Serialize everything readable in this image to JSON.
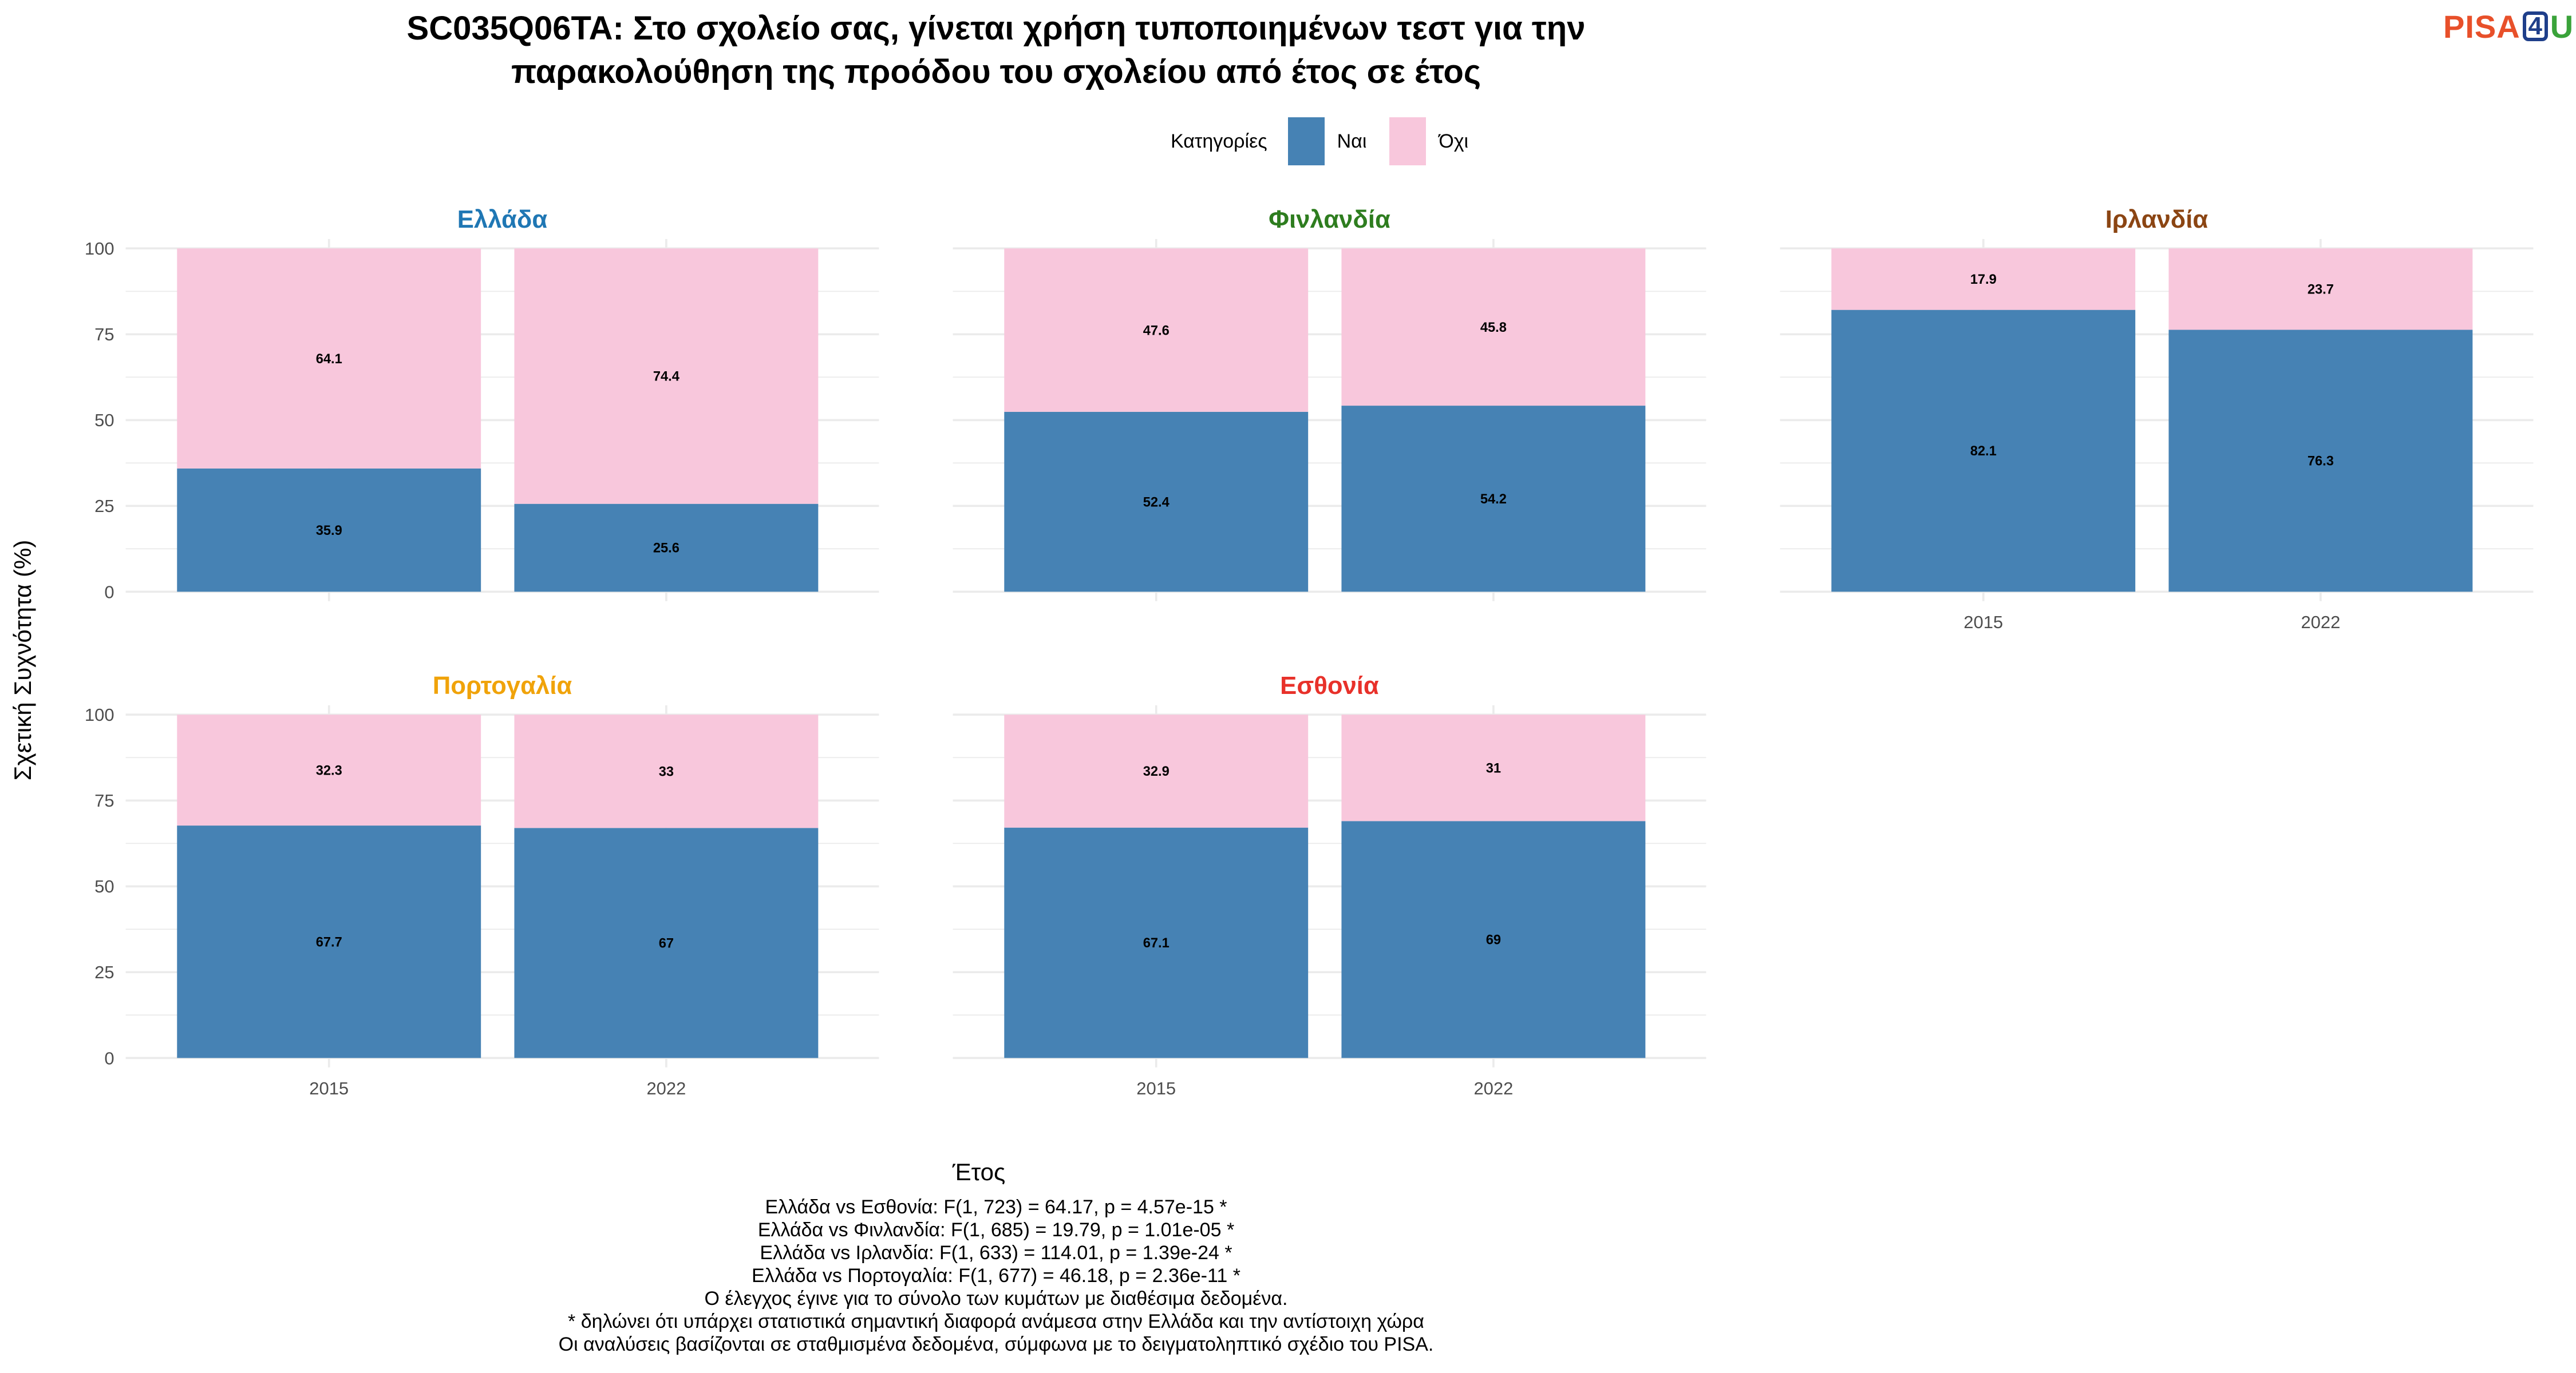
{
  "header": {
    "title_line1": "SC035Q06TA: Στο σχολείο σας, γίνεται χρήση τυποποιημένων τεστ για την",
    "title_line2": "παρακολούθηση της προόδου του σχολείου από έτος σε έτος",
    "logo_text": "PISA4U"
  },
  "colors": {
    "nai": "#4682b4",
    "ochi": "#f8c7dc",
    "grid": "#ebebeb"
  },
  "legend": {
    "title": "Κατηγορίες",
    "items": [
      "Ναι",
      "Όχι"
    ]
  },
  "chart_data": {
    "type": "bar",
    "stacked": true,
    "ylabel": "Σχετική Συχνότητα (%)",
    "xlabel": "Έτος",
    "ylim": [
      0,
      100
    ],
    "yticks": [
      "0",
      "25",
      "50",
      "75",
      "100"
    ],
    "categories": [
      "2015",
      "2022"
    ],
    "series_names": [
      "Ναι",
      "Όχι"
    ],
    "panels": [
      {
        "name": "Ελλάδα",
        "color": "#1f77b4",
        "nai": [
          35.9,
          25.6
        ],
        "ochi": [
          64.1,
          74.4
        ],
        "nai_labels": [
          "35.9",
          "25.6"
        ],
        "ochi_labels": [
          "64.1",
          "74.4"
        ]
      },
      {
        "name": "Φινλανδία",
        "color": "#2e7d1f",
        "nai": [
          52.4,
          54.2
        ],
        "ochi": [
          47.6,
          45.8
        ],
        "nai_labels": [
          "52.4",
          "54.2"
        ],
        "ochi_labels": [
          "47.6",
          "45.8"
        ]
      },
      {
        "name": "Ιρλανδία",
        "color": "#8b4513",
        "nai": [
          82.1,
          76.3
        ],
        "ochi": [
          17.9,
          23.7
        ],
        "nai_labels": [
          "82.1",
          "76.3"
        ],
        "ochi_labels": [
          "17.9",
          "23.7"
        ]
      },
      {
        "name": "Πορτογαλία",
        "color": "#f0a30a",
        "nai": [
          67.7,
          67.0
        ],
        "ochi": [
          32.3,
          33.0
        ],
        "nai_labels": [
          "67.7",
          "67"
        ],
        "ochi_labels": [
          "32.3",
          "33"
        ]
      },
      {
        "name": "Εσθονία",
        "color": "#e8312a",
        "nai": [
          67.1,
          69.0
        ],
        "ochi": [
          32.9,
          31.0
        ],
        "nai_labels": [
          "67.1",
          "69"
        ],
        "ochi_labels": [
          "32.9",
          "31"
        ]
      }
    ]
  },
  "notes": [
    "Ελλάδα vs Εσθονία: F(1, 723) = 64.17, p = 4.57e-15 *",
    "Ελλάδα vs Φινλανδία: F(1, 685) = 19.79, p = 1.01e-05 *",
    "Ελλάδα vs Ιρλανδία: F(1, 633) = 114.01, p = 1.39e-24 *",
    "Ελλάδα vs Πορτογαλία: F(1, 677) = 46.18, p = 2.36e-11 *",
    "Ο έλεγχος έγινε για το σύνολο των κυμάτων με διαθέσιμα δεδομένα.",
    "* δηλώνει ότι υπάρχει στατιστικά σημαντική διαφορά ανάμεσα στην Ελλάδα και την αντίστοιχη χώρα",
    "Οι αναλύσεις βασίζονται σε σταθμισμένα δεδομένα, σύμφωνα με το δειγματοληπτικό σχέδιο του PISA."
  ]
}
